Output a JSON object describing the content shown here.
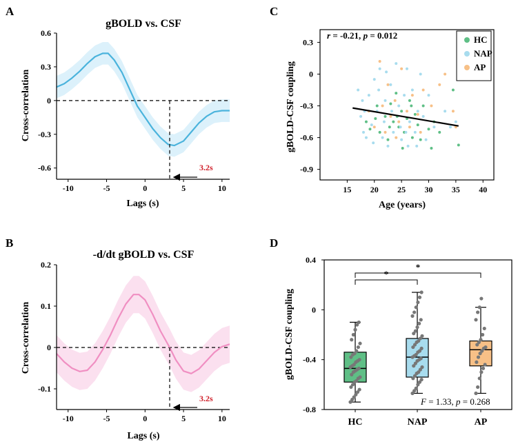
{
  "panels": {
    "A": {
      "letter": "A",
      "title": "gBOLD vs. CSF",
      "xlabel": "Lags (s)",
      "ylabel": "Cross-correlation",
      "lag_label": "3.2s"
    },
    "B": {
      "letter": "B",
      "title": "-d/dt gBOLD vs. CSF",
      "xlabel": "Lags (s)",
      "ylabel": "Cross-correlation",
      "lag_label": "3.2s"
    },
    "C": {
      "letter": "C",
      "xlabel": "Age (years)",
      "ylabel": "gBOLD-CSF coupling",
      "stats_r": "r",
      "stats_r_val": " = -0.21, ",
      "stats_p": "p",
      "stats_p_val": " = 0.012"
    },
    "D": {
      "letter": "D",
      "ylabel": "gBOLD-CSF coupling",
      "stats_F": "F",
      "stats_F_val": " = 1.33, ",
      "stats_p": "p",
      "stats_p_val": " = 0.268",
      "sig1": "*",
      "sig2": "*"
    }
  },
  "colors": {
    "hc": "#5fbf86",
    "nap": "#a8dcee",
    "ap": "#f7c087",
    "line_a": "#4ab3dc",
    "band_a": "#dcf1fb",
    "line_b": "#f08fc2",
    "band_b": "#fbe0ef",
    "lag_text": "#d0202a"
  },
  "chart_data": [
    {
      "type": "line",
      "title": "gBOLD vs. CSF",
      "xlabel": "Lags (s)",
      "ylabel": "Cross-correlation",
      "xlim": [
        -11.5,
        11
      ],
      "ylim": [
        -0.7,
        0.6
      ],
      "xticks": [
        -10,
        -5,
        0,
        5,
        10
      ],
      "yticks": [
        0.6,
        0.3,
        0,
        -0.3,
        -0.6
      ],
      "ytick_labels": [
        "0.6",
        "0.3",
        "0",
        "-0.3",
        "-0.6"
      ],
      "x": [
        -11.5,
        -10.5,
        -9.5,
        -8.5,
        -7.5,
        -6.5,
        -5.5,
        -4.8,
        -4,
        -3,
        -2,
        -1,
        0,
        1,
        2,
        3,
        3.8,
        5,
        6,
        7,
        8,
        9,
        10,
        11
      ],
      "y": [
        0.12,
        0.15,
        0.2,
        0.26,
        0.33,
        0.39,
        0.42,
        0.42,
        0.36,
        0.25,
        0.1,
        -0.05,
        -0.15,
        -0.25,
        -0.33,
        -0.39,
        -0.4,
        -0.36,
        -0.28,
        -0.2,
        -0.14,
        -0.1,
        -0.09,
        -0.09
      ],
      "band": 0.1,
      "lag_marker": {
        "x": 3.2,
        "label": "3.2s"
      }
    },
    {
      "type": "line",
      "title": "-d/dt gBOLD vs. CSF",
      "xlabel": "Lags (s)",
      "ylabel": "Cross-correlation",
      "xlim": [
        -11.5,
        11
      ],
      "ylim": [
        -0.15,
        0.2
      ],
      "xticks": [
        -10,
        -5,
        0,
        5,
        10
      ],
      "yticks": [
        0.2,
        0.1,
        0,
        -0.1
      ],
      "ytick_labels": [
        "0.2",
        "0.1",
        "0",
        "-0.1"
      ],
      "x": [
        -11.5,
        -10.5,
        -9.5,
        -8.5,
        -7.5,
        -6.5,
        -5.5,
        -4.5,
        -3.5,
        -2.5,
        -1.5,
        -0.8,
        0,
        1,
        2,
        3.2,
        4,
        5,
        6,
        7,
        8,
        9,
        10,
        11
      ],
      "y": [
        -0.015,
        -0.035,
        -0.05,
        -0.058,
        -0.055,
        -0.035,
        -0.005,
        0.03,
        0.07,
        0.105,
        0.128,
        0.128,
        0.115,
        0.08,
        0.04,
        0.0,
        -0.03,
        -0.057,
        -0.063,
        -0.052,
        -0.032,
        -0.012,
        0.002,
        0.008
      ],
      "band": 0.045,
      "lag_marker": {
        "x": 3.2,
        "label": "3.2s"
      }
    },
    {
      "type": "scatter",
      "xlabel": "Age (years)",
      "ylabel": "gBOLD-CSF coupling",
      "xlim": [
        10,
        42
      ],
      "ylim": [
        -1.0,
        0.42
      ],
      "xticks": [
        15,
        20,
        25,
        30,
        35,
        40
      ],
      "yticks": [
        0.3,
        0,
        -0.3,
        -0.6,
        -0.9
      ],
      "ytick_labels": [
        "0.3",
        "0",
        "-0.3",
        "-0.6",
        "-0.9"
      ],
      "legend": [
        "HC",
        "NAP",
        "AP"
      ],
      "legend_position": "top-right",
      "fit_line": {
        "x": [
          16,
          35.5
        ],
        "y": [
          -0.32,
          -0.49
        ]
      },
      "series": [
        {
          "name": "HC",
          "points": [
            [
              18.5,
              -0.45
            ],
            [
              19.2,
              -0.52
            ],
            [
              20.5,
              -0.3
            ],
            [
              21.0,
              -0.55
            ],
            [
              22.0,
              -0.4
            ],
            [
              22.5,
              -0.62
            ],
            [
              23.0,
              -0.28
            ],
            [
              23.5,
              -0.45
            ],
            [
              24.0,
              -0.18
            ],
            [
              24.5,
              -0.5
            ],
            [
              25.0,
              -0.35
            ],
            [
              25.5,
              -0.55
            ],
            [
              26.0,
              -0.42
            ],
            [
              26.5,
              -0.25
            ],
            [
              27.0,
              -0.6
            ],
            [
              27.5,
              -0.38
            ],
            [
              28.0,
              -0.48
            ],
            [
              29.0,
              -0.3
            ],
            [
              30.0,
              -0.52
            ],
            [
              31.0,
              -0.45
            ],
            [
              32.0,
              -0.55
            ],
            [
              34.5,
              -0.15
            ],
            [
              35.5,
              -0.67
            ],
            [
              22.8,
              -0.5
            ],
            [
              24.2,
              -0.4
            ],
            [
              26.8,
              -0.3
            ],
            [
              20.2,
              -0.42
            ],
            [
              28.5,
              -0.62
            ],
            [
              25.2,
              -0.7
            ],
            [
              30.5,
              -0.7
            ]
          ]
        },
        {
          "name": "NAP",
          "points": [
            [
              17.0,
              -0.15
            ],
            [
              17.5,
              -0.4
            ],
            [
              18.0,
              -0.55
            ],
            [
              18.5,
              -0.6
            ],
            [
              19.0,
              -0.2
            ],
            [
              19.5,
              -0.48
            ],
            [
              20.0,
              -0.05
            ],
            [
              20.5,
              -0.35
            ],
            [
              21.0,
              0.05
            ],
            [
              21.5,
              -0.6
            ],
            [
              22.0,
              -0.25
            ],
            [
              22.5,
              -0.68
            ],
            [
              23.0,
              -0.1
            ],
            [
              23.5,
              -0.55
            ],
            [
              24.0,
              0.1
            ],
            [
              24.5,
              -0.3
            ],
            [
              25.0,
              -0.62
            ],
            [
              25.5,
              -0.2
            ],
            [
              26.0,
              0.05
            ],
            [
              26.5,
              -0.45
            ],
            [
              27.0,
              -0.15
            ],
            [
              27.5,
              -0.55
            ],
            [
              28.0,
              -0.35
            ],
            [
              28.5,
              0.0
            ],
            [
              29.0,
              -0.4
            ],
            [
              29.5,
              -0.62
            ],
            [
              30.0,
              -0.2
            ],
            [
              31.0,
              -0.5
            ],
            [
              33.0,
              -0.35
            ],
            [
              34.0,
              -0.5
            ],
            [
              35.0,
              -0.45
            ],
            [
              21.8,
              -0.45
            ],
            [
              23.2,
              -0.35
            ],
            [
              19.8,
              -0.65
            ],
            [
              24.8,
              -0.5
            ],
            [
              26.2,
              -0.68
            ],
            [
              17.8,
              -0.25
            ],
            [
              20.8,
              -0.15
            ],
            [
              22.2,
              0.02
            ],
            [
              27.8,
              -0.68
            ],
            [
              18.2,
              -0.35
            ],
            [
              25.8,
              -0.55
            ]
          ]
        },
        {
          "name": "AP",
          "points": [
            [
              19.0,
              -0.35
            ],
            [
              20.0,
              -0.5
            ],
            [
              21.5,
              -0.3
            ],
            [
              22.0,
              -0.55
            ],
            [
              23.0,
              -0.4
            ],
            [
              23.8,
              -0.25
            ],
            [
              24.5,
              -0.45
            ],
            [
              25.0,
              0.05
            ],
            [
              26.0,
              -0.35
            ],
            [
              26.5,
              -0.5
            ],
            [
              27.0,
              -0.2
            ],
            [
              28.0,
              -0.38
            ],
            [
              29.0,
              -0.15
            ],
            [
              30.5,
              -0.3
            ],
            [
              32.0,
              -0.1
            ],
            [
              33.0,
              0.0
            ],
            [
              34.5,
              -0.35
            ],
            [
              35.0,
              -0.5
            ],
            [
              22.5,
              -0.1
            ],
            [
              21.0,
              0.12
            ],
            [
              28.5,
              -0.55
            ],
            [
              24.0,
              -0.6
            ]
          ]
        }
      ]
    },
    {
      "type": "box",
      "ylabel": "gBOLD-CSF coupling",
      "categories": [
        "HC",
        "NAP",
        "AP"
      ],
      "ylim": [
        -0.8,
        0.4
      ],
      "yticks": [
        0.4,
        0,
        -0.4,
        -0.8
      ],
      "ytick_labels": [
        "0.4",
        "0",
        "-0.4",
        "-0.8"
      ],
      "boxes": [
        {
          "name": "HC",
          "min": -0.74,
          "q1": -0.58,
          "median": -0.47,
          "q3": -0.34,
          "max": -0.1
        },
        {
          "name": "NAP",
          "min": -0.67,
          "q1": -0.54,
          "median": -0.38,
          "q3": -0.23,
          "max": 0.14
        },
        {
          "name": "AP",
          "min": -0.67,
          "q1": -0.45,
          "median": -0.32,
          "q3": -0.25,
          "max": 0.02
        }
      ],
      "points": {
        "HC": [
          -0.74,
          -0.72,
          -0.7,
          -0.68,
          -0.66,
          -0.64,
          -0.62,
          -0.6,
          -0.58,
          -0.57,
          -0.55,
          -0.54,
          -0.52,
          -0.5,
          -0.49,
          -0.48,
          -0.47,
          -0.46,
          -0.45,
          -0.44,
          -0.42,
          -0.41,
          -0.4,
          -0.38,
          -0.36,
          -0.35,
          -0.33,
          -0.3,
          -0.27,
          -0.24,
          -0.2,
          -0.16,
          -0.12,
          -0.1
        ],
        "NAP": [
          -0.67,
          -0.65,
          -0.63,
          -0.6,
          -0.58,
          -0.56,
          -0.55,
          -0.53,
          -0.51,
          -0.5,
          -0.48,
          -0.46,
          -0.45,
          -0.43,
          -0.41,
          -0.4,
          -0.39,
          -0.38,
          -0.37,
          -0.36,
          -0.34,
          -0.33,
          -0.31,
          -0.3,
          -0.28,
          -0.26,
          -0.25,
          -0.23,
          -0.21,
          -0.19,
          -0.17,
          -0.14,
          -0.11,
          -0.08,
          -0.05,
          -0.02,
          0.02,
          0.06,
          0.1,
          0.14
        ],
        "AP": [
          -0.67,
          -0.62,
          -0.55,
          -0.5,
          -0.47,
          -0.44,
          -0.42,
          -0.38,
          -0.35,
          -0.33,
          -0.31,
          -0.3,
          -0.28,
          -0.26,
          -0.24,
          -0.2,
          -0.15,
          -0.08,
          -0.02,
          0.02,
          0.09
        ]
      },
      "significance": [
        {
          "between": [
            "HC",
            "NAP"
          ],
          "label": "*"
        },
        {
          "between": [
            "HC",
            "AP"
          ],
          "label": "*"
        }
      ]
    }
  ]
}
